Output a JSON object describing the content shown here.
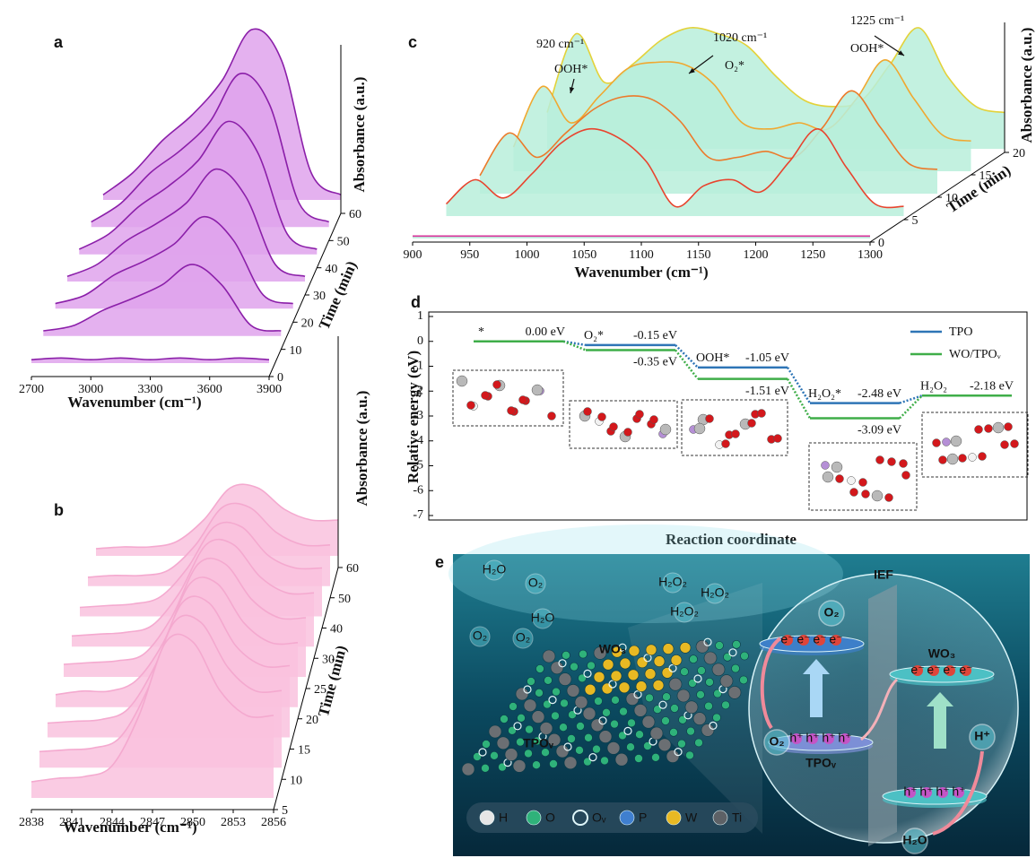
{
  "chart_data": [
    {
      "panel": "a",
      "type": "waterfall",
      "xlabel": "Wavenumber (cm⁻¹)",
      "ylabel": "Absorbance (a.u.)",
      "zlabel": "Time (min)",
      "xlim": [
        2700,
        3900
      ],
      "xticks": [
        2700,
        3000,
        3300,
        3600,
        3900
      ],
      "ylim": [
        0,
        1
      ],
      "z_categories": [
        0,
        10,
        20,
        30,
        40,
        50,
        60
      ],
      "area_color": "#dfa3ec",
      "x": [
        2700,
        2850,
        3000,
        3150,
        3300,
        3450,
        3600,
        3750,
        3900
      ],
      "series": [
        {
          "color": "#8b1fa9",
          "values": [
            0.02,
            0.03,
            0.02,
            0.03,
            0.02,
            0.03,
            0.02,
            0.03,
            0.02
          ]
        },
        {
          "color": "#8b1fa9",
          "values": [
            0.03,
            0.06,
            0.15,
            0.22,
            0.3,
            0.42,
            0.3,
            0.06,
            0.03
          ]
        },
        {
          "color": "#8b1fa9",
          "values": [
            0.03,
            0.08,
            0.2,
            0.28,
            0.38,
            0.54,
            0.4,
            0.08,
            0.03
          ]
        },
        {
          "color": "#8b1fa9",
          "values": [
            0.03,
            0.1,
            0.24,
            0.34,
            0.46,
            0.66,
            0.5,
            0.1,
            0.03
          ]
        },
        {
          "color": "#8b1fa9",
          "values": [
            0.03,
            0.12,
            0.28,
            0.4,
            0.55,
            0.78,
            0.6,
            0.12,
            0.03
          ]
        },
        {
          "color": "#8b1fa9",
          "values": [
            0.03,
            0.14,
            0.32,
            0.45,
            0.62,
            0.9,
            0.72,
            0.14,
            0.03
          ]
        },
        {
          "color": "#8b1fa9",
          "values": [
            0.03,
            0.16,
            0.35,
            0.5,
            0.7,
            1.0,
            0.82,
            0.16,
            0.03
          ]
        }
      ]
    },
    {
      "panel": "b",
      "type": "waterfall",
      "xlabel": "Wavenumber (cm⁻¹)",
      "ylabel": "Absorbance (a.u.)",
      "zlabel": "Time (min)",
      "xlim": [
        2838,
        2856
      ],
      "xticks": [
        2838,
        2841,
        2844,
        2847,
        2850,
        2853,
        2856
      ],
      "ylim": [
        0,
        1
      ],
      "z_categories": [
        5,
        10,
        15,
        20,
        25,
        30,
        40,
        50,
        60
      ],
      "area_color": "#f9c2de",
      "x": [
        2838,
        2840,
        2842,
        2844,
        2846,
        2848,
        2850,
        2852,
        2854,
        2856
      ],
      "series": [
        {
          "color": "#f4a9cf",
          "values": [
            0.09,
            0.11,
            0.12,
            0.18,
            0.46,
            0.87,
            0.87,
            0.6,
            0.46,
            0.46
          ]
        },
        {
          "color": "#f4a9cf",
          "values": [
            0.09,
            0.1,
            0.11,
            0.17,
            0.43,
            0.81,
            0.81,
            0.56,
            0.43,
            0.43
          ]
        },
        {
          "color": "#f4a9cf",
          "values": [
            0.08,
            0.09,
            0.1,
            0.16,
            0.4,
            0.75,
            0.75,
            0.51,
            0.4,
            0.4
          ]
        },
        {
          "color": "#f4a9cf",
          "values": [
            0.07,
            0.09,
            0.09,
            0.15,
            0.36,
            0.69,
            0.69,
            0.47,
            0.36,
            0.36
          ]
        },
        {
          "color": "#f4a9cf",
          "values": [
            0.07,
            0.08,
            0.09,
            0.13,
            0.33,
            0.63,
            0.63,
            0.43,
            0.33,
            0.33
          ]
        },
        {
          "color": "#f4a9cf",
          "values": [
            0.06,
            0.07,
            0.08,
            0.12,
            0.3,
            0.57,
            0.57,
            0.39,
            0.3,
            0.3
          ]
        },
        {
          "color": "#f4a9cf",
          "values": [
            0.05,
            0.06,
            0.07,
            0.11,
            0.27,
            0.5,
            0.5,
            0.34,
            0.27,
            0.27
          ]
        },
        {
          "color": "#f4a9cf",
          "values": [
            0.05,
            0.06,
            0.06,
            0.09,
            0.23,
            0.44,
            0.44,
            0.3,
            0.23,
            0.23
          ]
        },
        {
          "color": "#f4a9cf",
          "values": [
            0.04,
            0.05,
            0.05,
            0.08,
            0.2,
            0.38,
            0.38,
            0.26,
            0.2,
            0.2
          ]
        }
      ]
    },
    {
      "panel": "c",
      "type": "waterfall",
      "xlabel": "Wavenumber (cm⁻¹)",
      "ylabel": "Absorbance (a.u.)",
      "zlabel": "Time (min)",
      "xlim": [
        900,
        1300
      ],
      "xticks": [
        900,
        950,
        1000,
        1050,
        1100,
        1150,
        1200,
        1250,
        1300
      ],
      "ylim": [
        0,
        1
      ],
      "z_categories": [
        0,
        5,
        10,
        15,
        20
      ],
      "area_color": "#b9efda",
      "annotations": [
        "920 cm⁻¹",
        "OOH*",
        "1020 cm⁻¹",
        "O₂*",
        "1225 cm⁻¹",
        "OOH*"
      ],
      "x": [
        900,
        925,
        950,
        975,
        1000,
        1025,
        1050,
        1075,
        1100,
        1125,
        1150,
        1175,
        1200,
        1225,
        1250,
        1275,
        1300
      ],
      "series": [
        {
          "color": "#d6339a",
          "values": [
            0.02,
            0.02,
            0.02,
            0.02,
            0.02,
            0.02,
            0.02,
            0.02,
            0.02,
            0.02,
            0.02,
            0.02,
            0.02,
            0.02,
            0.02,
            0.02,
            0.02
          ]
        },
        {
          "color": "#e8442e",
          "values": [
            0.1,
            0.3,
            0.15,
            0.35,
            0.6,
            0.72,
            0.65,
            0.45,
            0.08,
            0.25,
            0.3,
            0.2,
            0.45,
            0.72,
            0.4,
            0.1,
            0.08
          ]
        },
        {
          "color": "#ec7a2a",
          "values": [
            0.15,
            0.5,
            0.3,
            0.5,
            0.7,
            0.8,
            0.78,
            0.6,
            0.3,
            0.3,
            0.35,
            0.3,
            0.55,
            0.85,
            0.55,
            0.25,
            0.2
          ]
        },
        {
          "color": "#f0a830",
          "values": [
            0.2,
            0.7,
            0.4,
            0.62,
            0.85,
            0.9,
            0.88,
            0.72,
            0.4,
            0.35,
            0.4,
            0.35,
            0.6,
            0.92,
            0.6,
            0.3,
            0.25
          ]
        },
        {
          "color": "#e3d23a",
          "values": [
            0.3,
            0.95,
            0.55,
            0.7,
            0.9,
            1.0,
            0.95,
            0.85,
            0.6,
            0.4,
            0.35,
            0.4,
            0.7,
            1.0,
            0.6,
            0.35,
            0.3
          ]
        }
      ]
    },
    {
      "panel": "d",
      "type": "energy-levels",
      "xlabel": "Reaction coordinate",
      "ylabel": "Relative energy (eV)",
      "categories": [
        "*",
        "O₂*",
        "OOH*",
        "H₂O₂*",
        "H₂O₂"
      ],
      "ylim": [
        -7,
        1
      ],
      "yticks": [
        -7,
        -6,
        -5,
        -4,
        -3,
        -2,
        -1,
        0,
        1
      ],
      "legend": "upper right",
      "series": [
        {
          "name": "TPO",
          "color": "#2e75b6",
          "values": [
            0,
            -0.15,
            -1.05,
            -2.48,
            -2.18
          ],
          "value_labels": [
            "0.00 eV",
            "-0.15 eV",
            "-1.05 eV",
            "-2.48 eV",
            "-2.18 eV"
          ]
        },
        {
          "name": "WO/TPOᵥ",
          "color": "#3fae49",
          "values": [
            0,
            -0.35,
            -1.51,
            -3.09,
            -2.18
          ],
          "value_labels": [
            null,
            "-0.35 eV",
            "-1.51 eV",
            "-3.09 eV",
            null
          ]
        }
      ]
    }
  ],
  "illustration": {
    "panel": "e",
    "floating": [
      "H₂O",
      "O₂",
      "H₂O",
      "O₂",
      "O₂",
      "H₂O₂",
      "H₂O₂",
      "H₂O₂"
    ],
    "catalyst_top": "WO₃",
    "catalyst_bottom": "TPOᵥ",
    "ief": "IEF",
    "electron": "e⁻",
    "hole": "h⁺",
    "o2": "O₂",
    "h_plus": "H⁺",
    "h2o": "H₂O",
    "legend": [
      "H",
      "O",
      "Oᵥ",
      "P",
      "W",
      "Ti"
    ]
  }
}
